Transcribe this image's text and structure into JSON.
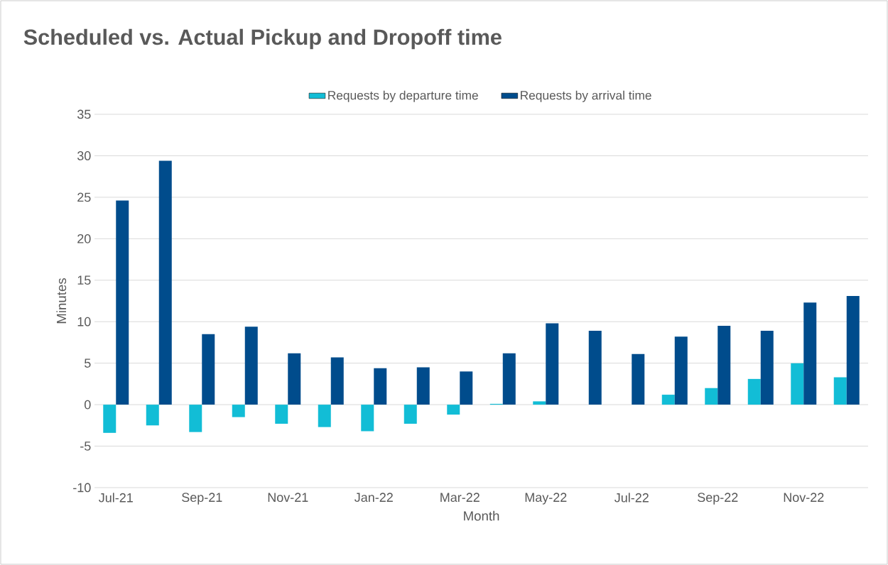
{
  "chart_data": {
    "type": "bar",
    "title": "Scheduled vs. Actual Pickup and Dropoff time",
    "xlabel": "Month",
    "ylabel": "Minutes",
    "categories": [
      "Jul-21",
      null,
      "Sep-21",
      null,
      "Nov-21",
      null,
      "Jan-22",
      null,
      "Mar-22",
      null,
      "May-22",
      null,
      "Jul-22",
      null,
      "Sep-22",
      null,
      "Nov-22",
      null
    ],
    "series": [
      {
        "name": "Requests by departure time",
        "color": "#12bdd6",
        "values": [
          -3.4,
          -2.5,
          -3.3,
          -1.5,
          -2.3,
          -2.7,
          -3.2,
          -2.3,
          -1.2,
          0.1,
          0.4,
          0,
          0,
          1.2,
          2.0,
          3.1,
          5.0,
          3.3
        ]
      },
      {
        "name": "Requests by arrival time",
        "color": "#004c8c",
        "values": [
          24.6,
          29.4,
          8.5,
          9.4,
          6.2,
          5.7,
          4.4,
          4.5,
          4.0,
          6.2,
          9.8,
          8.9,
          6.1,
          8.2,
          9.5,
          8.9,
          12.3,
          13.1
        ]
      }
    ],
    "ylim": [
      -10,
      35
    ],
    "yticks": [
      -10,
      -5,
      0,
      5,
      10,
      15,
      20,
      25,
      30,
      35
    ],
    "grid": "y",
    "legend": "top"
  }
}
